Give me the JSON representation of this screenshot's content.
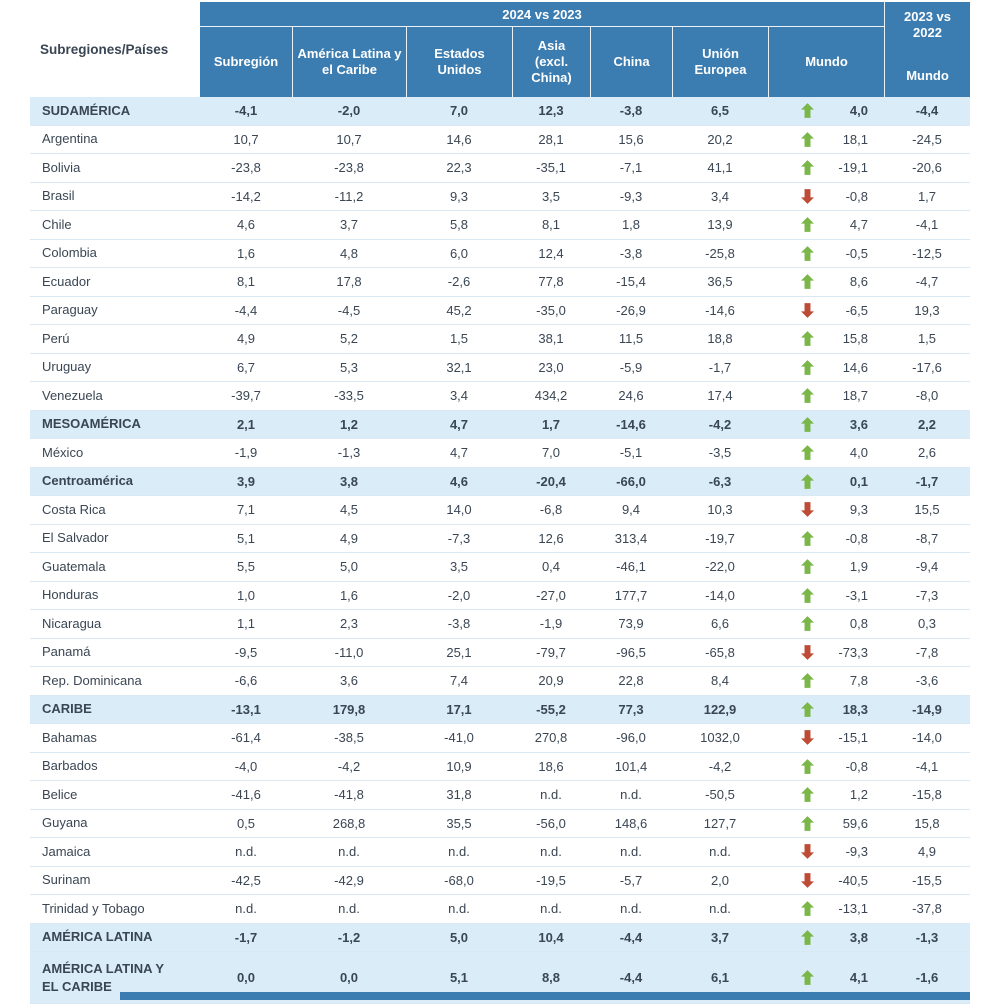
{
  "colors": {
    "header_bg": "#3B7CB1",
    "region_row_bg": "#D9ECF8",
    "row_border": "#DAE8F3",
    "text": "#3A4653",
    "up_arrow": "#7AB648",
    "down_arrow": "#BE4B35"
  },
  "chart_data": {
    "type": "table",
    "corner_header": "Subregiones/Países",
    "group_header": "2024 vs 2023",
    "column_headers": [
      "Subregión",
      "América Latina y\nel Caribe",
      "Estados\nUnidos",
      "Asia\n(excl.\nChina)",
      "China",
      "Unión\nEuropea",
      "Mundo"
    ],
    "right_header_top": "2023 vs\n2022",
    "right_header_bottom": "Mundo",
    "rows": [
      {
        "label": "SUDAMÉRICA",
        "kind": "region",
        "values": [
          "-4,1",
          "-2,0",
          "7,0",
          "12,3",
          "-3,8",
          "6,5"
        ],
        "arrow": "up",
        "mundo": "4,0",
        "prev": "-4,4"
      },
      {
        "label": "Argentina",
        "kind": "country",
        "values": [
          "10,7",
          "10,7",
          "14,6",
          "28,1",
          "15,6",
          "20,2"
        ],
        "arrow": "up",
        "mundo": "18,1",
        "prev": "-24,5"
      },
      {
        "label": "Bolivia",
        "kind": "country",
        "values": [
          "-23,8",
          "-23,8",
          "22,3",
          "-35,1",
          "-7,1",
          "41,1"
        ],
        "arrow": "up",
        "mundo": "-19,1",
        "prev": "-20,6"
      },
      {
        "label": "Brasil",
        "kind": "country",
        "values": [
          "-14,2",
          "-11,2",
          "9,3",
          "3,5",
          "-9,3",
          "3,4"
        ],
        "arrow": "down",
        "mundo": "-0,8",
        "prev": "1,7"
      },
      {
        "label": "Chile",
        "kind": "country",
        "values": [
          "4,6",
          "3,7",
          "5,8",
          "8,1",
          "1,8",
          "13,9"
        ],
        "arrow": "up",
        "mundo": "4,7",
        "prev": "-4,1"
      },
      {
        "label": "Colombia",
        "kind": "country",
        "values": [
          "1,6",
          "4,8",
          "6,0",
          "12,4",
          "-3,8",
          "-25,8"
        ],
        "arrow": "up",
        "mundo": "-0,5",
        "prev": "-12,5"
      },
      {
        "label": "Ecuador",
        "kind": "country",
        "values": [
          "8,1",
          "17,8",
          "-2,6",
          "77,8",
          "-15,4",
          "36,5"
        ],
        "arrow": "up",
        "mundo": "8,6",
        "prev": "-4,7"
      },
      {
        "label": "Paraguay",
        "kind": "country",
        "values": [
          "-4,4",
          "-4,5",
          "45,2",
          "-35,0",
          "-26,9",
          "-14,6"
        ],
        "arrow": "down",
        "mundo": "-6,5",
        "prev": "19,3"
      },
      {
        "label": "Perú",
        "kind": "country",
        "values": [
          "4,9",
          "5,2",
          "1,5",
          "38,1",
          "11,5",
          "18,8"
        ],
        "arrow": "up",
        "mundo": "15,8",
        "prev": "1,5"
      },
      {
        "label": "Uruguay",
        "kind": "country",
        "values": [
          "6,7",
          "5,3",
          "32,1",
          "23,0",
          "-5,9",
          "-1,7"
        ],
        "arrow": "up",
        "mundo": "14,6",
        "prev": "-17,6"
      },
      {
        "label": "Venezuela",
        "kind": "country",
        "values": [
          "-39,7",
          "-33,5",
          "3,4",
          "434,2",
          "24,6",
          "17,4"
        ],
        "arrow": "up",
        "mundo": "18,7",
        "prev": "-8,0"
      },
      {
        "label": "MESOAMÉRICA",
        "kind": "region",
        "values": [
          "2,1",
          "1,2",
          "4,7",
          "1,7",
          "-14,6",
          "-4,2"
        ],
        "arrow": "up",
        "mundo": "3,6",
        "prev": "2,2"
      },
      {
        "label": "México",
        "kind": "country",
        "values": [
          "-1,9",
          "-1,3",
          "4,7",
          "7,0",
          "-5,1",
          "-3,5"
        ],
        "arrow": "up",
        "mundo": "4,0",
        "prev": "2,6"
      },
      {
        "label": "Centroamérica",
        "kind": "region",
        "values": [
          "3,9",
          "3,8",
          "4,6",
          "-20,4",
          "-66,0",
          "-6,3"
        ],
        "arrow": "up",
        "mundo": "0,1",
        "prev": "-1,7"
      },
      {
        "label": "Costa Rica",
        "kind": "country",
        "values": [
          "7,1",
          "4,5",
          "14,0",
          "-6,8",
          "9,4",
          "10,3"
        ],
        "arrow": "down",
        "mundo": "9,3",
        "prev": "15,5"
      },
      {
        "label": "El Salvador",
        "kind": "country",
        "values": [
          "5,1",
          "4,9",
          "-7,3",
          "12,6",
          "313,4",
          "-19,7"
        ],
        "arrow": "up",
        "mundo": "-0,8",
        "prev": "-8,7"
      },
      {
        "label": "Guatemala",
        "kind": "country",
        "values": [
          "5,5",
          "5,0",
          "3,5",
          "0,4",
          "-46,1",
          "-22,0"
        ],
        "arrow": "up",
        "mundo": "1,9",
        "prev": "-9,4"
      },
      {
        "label": "Honduras",
        "kind": "country",
        "values": [
          "1,0",
          "1,6",
          "-2,0",
          "-27,0",
          "177,7",
          "-14,0"
        ],
        "arrow": "up",
        "mundo": "-3,1",
        "prev": "-7,3"
      },
      {
        "label": "Nicaragua",
        "kind": "country",
        "values": [
          "1,1",
          "2,3",
          "-3,8",
          "-1,9",
          "73,9",
          "6,6"
        ],
        "arrow": "up",
        "mundo": "0,8",
        "prev": "0,3"
      },
      {
        "label": "Panamá",
        "kind": "country",
        "values": [
          "-9,5",
          "-11,0",
          "25,1",
          "-79,7",
          "-96,5",
          "-65,8"
        ],
        "arrow": "down",
        "mundo": "-73,3",
        "prev": "-7,8"
      },
      {
        "label": "Rep. Dominicana",
        "kind": "country",
        "values": [
          "-6,6",
          "3,6",
          "7,4",
          "20,9",
          "22,8",
          "8,4"
        ],
        "arrow": "up",
        "mundo": "7,8",
        "prev": "-3,6"
      },
      {
        "label": "CARIBE",
        "kind": "region",
        "values": [
          "-13,1",
          "179,8",
          "17,1",
          "-55,2",
          "77,3",
          "122,9"
        ],
        "arrow": "up",
        "mundo": "18,3",
        "prev": "-14,9"
      },
      {
        "label": "Bahamas",
        "kind": "country",
        "values": [
          "-61,4",
          "-38,5",
          "-41,0",
          "270,8",
          "-96,0",
          "1032,0"
        ],
        "arrow": "down",
        "mundo": "-15,1",
        "prev": "-14,0"
      },
      {
        "label": "Barbados",
        "kind": "country",
        "values": [
          "-4,0",
          "-4,2",
          "10,9",
          "18,6",
          "101,4",
          "-4,2"
        ],
        "arrow": "up",
        "mundo": "-0,8",
        "prev": "-4,1"
      },
      {
        "label": "Belice",
        "kind": "country",
        "values": [
          "-41,6",
          "-41,8",
          "31,8",
          "n.d.",
          "n.d.",
          "-50,5"
        ],
        "arrow": "up",
        "mundo": "1,2",
        "prev": "-15,8"
      },
      {
        "label": "Guyana",
        "kind": "country",
        "values": [
          "0,5",
          "268,8",
          "35,5",
          "-56,0",
          "148,6",
          "127,7"
        ],
        "arrow": "up",
        "mundo": "59,6",
        "prev": "15,8"
      },
      {
        "label": "Jamaica",
        "kind": "country",
        "values": [
          "n.d.",
          "n.d.",
          "n.d.",
          "n.d.",
          "n.d.",
          "n.d."
        ],
        "arrow": "down",
        "mundo": "-9,3",
        "prev": "4,9"
      },
      {
        "label": "Surinam",
        "kind": "country",
        "values": [
          "-42,5",
          "-42,9",
          "-68,0",
          "-19,5",
          "-5,7",
          "2,0"
        ],
        "arrow": "down",
        "mundo": "-40,5",
        "prev": "-15,5"
      },
      {
        "label": "Trinidad y Tobago",
        "kind": "country",
        "values": [
          "n.d.",
          "n.d.",
          "n.d.",
          "n.d.",
          "n.d.",
          "n.d."
        ],
        "arrow": "up",
        "mundo": "-13,1",
        "prev": "-37,8"
      },
      {
        "label": "AMÉRICA LATINA",
        "kind": "region",
        "values": [
          "-1,7",
          "-1,2",
          "5,0",
          "10,4",
          "-4,4",
          "3,7"
        ],
        "arrow": "up",
        "mundo": "3,8",
        "prev": "-1,3"
      },
      {
        "label": "AMÉRICA LATINA Y\nEL CARIBE",
        "kind": "region",
        "values": [
          "0,0",
          "0,0",
          "5,1",
          "8,8",
          "-4,4",
          "6,1"
        ],
        "arrow": "up",
        "mundo": "4,1",
        "prev": "-1,6"
      }
    ]
  }
}
